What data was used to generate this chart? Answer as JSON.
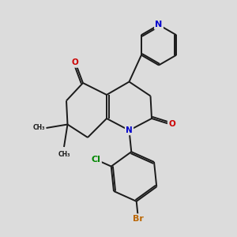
{
  "bg_color": "#dcdcdc",
  "bond_color": "#1a1a1a",
  "atom_colors": {
    "N": "#0000cc",
    "O": "#cc0000",
    "Cl": "#008800",
    "Br": "#bb6600"
  },
  "figsize": [
    3.0,
    3.0
  ],
  "dpi": 100,
  "lw": 1.4,
  "fontsize": 7.5
}
